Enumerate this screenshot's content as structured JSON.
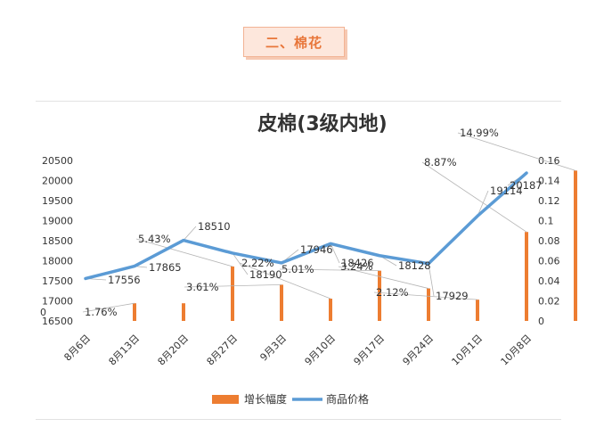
{
  "section_tag": "二、棉花",
  "chart_data": {
    "type": "bar+line",
    "title": "皮棉(3级内地)",
    "categories": [
      "8月6日",
      "8月13日",
      "8月20日",
      "8月27日",
      "9月3日",
      "9月10日",
      "9月17日",
      "9月24日",
      "10月1日",
      "10月8日"
    ],
    "series": [
      {
        "name": "增长幅度",
        "type": "bar",
        "axis": "right",
        "color": "#ed7d31",
        "values": [
          0.0176,
          0.0176,
          0.0543,
          0.0361,
          0.0222,
          0.0501,
          0.0324,
          0.0212,
          0.0887,
          0.1499
        ],
        "labels": [
          "1.76%",
          "",
          "5.43%",
          "3.61%",
          "2.22%",
          "5.01%",
          "3.24%",
          "2.12%",
          "8.87%",
          "14.99%"
        ]
      },
      {
        "name": "商品价格",
        "type": "line",
        "axis": "left",
        "color": "#5b9bd5",
        "values": [
          17556,
          17865,
          18510,
          18190,
          17946,
          18426,
          18128,
          17929,
          19114,
          20187
        ],
        "labels": [
          "17556",
          "17865",
          "18510",
          "18190",
          "17946",
          "18426",
          "18128",
          "17929",
          "19114",
          "20187"
        ]
      }
    ],
    "y_left": {
      "min": 16500,
      "max": 20500,
      "ticks": [
        "16500",
        "17000",
        "17500",
        "18000",
        "18500",
        "19000",
        "19500",
        "20000",
        "20500"
      ]
    },
    "y_left_zero_label": "0",
    "y_right": {
      "min": 0,
      "max": 0.16,
      "ticks": [
        "0",
        "0.02",
        "0.04",
        "0.06",
        "0.08",
        "0.1",
        "0.12",
        "0.14",
        "0.16"
      ]
    },
    "legend_position": "bottom",
    "grid": false
  }
}
